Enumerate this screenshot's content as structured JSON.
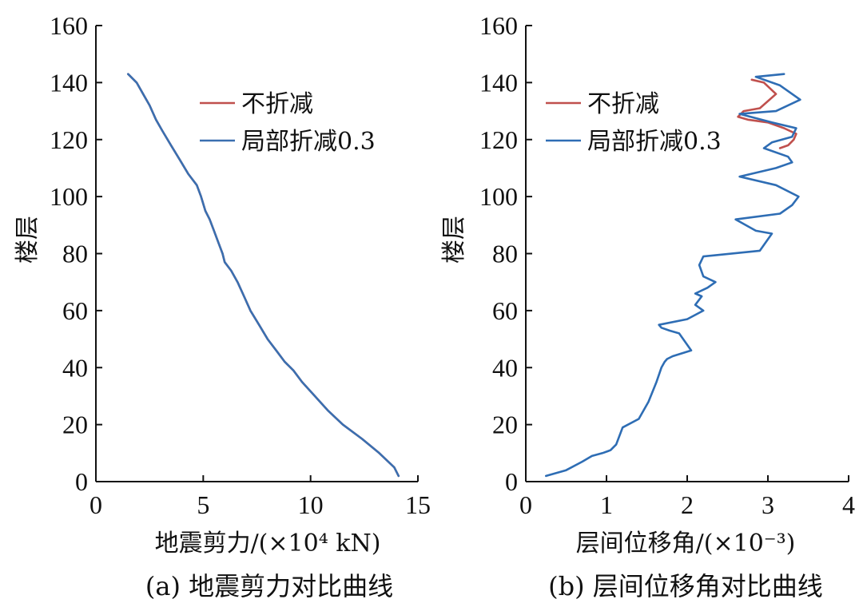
{
  "colors": {
    "series1": "#c0504d",
    "series2": "#3a6fb0",
    "axis": "#111111"
  },
  "chart_data": [
    {
      "type": "line",
      "caption": "(a) 地震剪力对比曲线",
      "xlabel": "地震剪力/(×10⁴ kN)",
      "ylabel": "楼层",
      "xlim": [
        0,
        15
      ],
      "ylim": [
        0,
        160
      ],
      "xticks": [
        "0",
        "5",
        "10",
        "15"
      ],
      "yticks": [
        "0",
        "20",
        "40",
        "60",
        "80",
        "100",
        "120",
        "140",
        "160"
      ],
      "legend": {
        "position": "top-right"
      },
      "series": [
        {
          "name": "不折减",
          "color": "#c0504d",
          "x": [
            14.1,
            13.9,
            13.2,
            12.4,
            11.5,
            10.8,
            10.2,
            9.6,
            9.2,
            8.8,
            8.4,
            8.0,
            7.6,
            7.2,
            6.9,
            6.6,
            6.3,
            6.0,
            5.9,
            5.7,
            5.5,
            5.3,
            5.1,
            4.9,
            4.7,
            4.3,
            3.9,
            3.5,
            3.1,
            2.8,
            2.5,
            2.2,
            1.9,
            1.5
          ],
          "y": [
            2,
            5,
            10,
            15,
            20,
            25,
            30,
            35,
            39,
            42,
            46,
            50,
            55,
            60,
            65,
            70,
            74,
            77,
            80,
            84,
            88,
            92,
            95,
            100,
            104,
            108,
            113,
            118,
            123,
            127,
            132,
            136,
            140,
            143
          ]
        },
        {
          "name": "局部折减0.3",
          "color": "#3a6fb0",
          "x": [
            14.1,
            13.9,
            13.2,
            12.4,
            11.5,
            10.8,
            10.2,
            9.6,
            9.2,
            8.8,
            8.4,
            8.0,
            7.6,
            7.2,
            6.9,
            6.6,
            6.3,
            6.0,
            5.9,
            5.7,
            5.5,
            5.3,
            5.1,
            4.9,
            4.7,
            4.3,
            3.9,
            3.5,
            3.1,
            2.8,
            2.5,
            2.2,
            1.9,
            1.5
          ],
          "y": [
            2,
            5,
            10,
            15,
            20,
            25,
            30,
            35,
            39,
            42,
            46,
            50,
            55,
            60,
            65,
            70,
            74,
            77,
            80,
            84,
            88,
            92,
            95,
            100,
            104,
            108,
            113,
            118,
            123,
            127,
            132,
            136,
            140,
            143
          ]
        }
      ]
    },
    {
      "type": "line",
      "caption": "(b) 层间位移角对比曲线",
      "xlabel": "层间位移角/(×10⁻³)",
      "ylabel": "楼层",
      "xlim": [
        0,
        4
      ],
      "ylim": [
        0,
        160
      ],
      "xticks": [
        "0",
        "1",
        "2",
        "3",
        "4"
      ],
      "yticks": [
        "0",
        "20",
        "40",
        "60",
        "80",
        "100",
        "120",
        "140",
        "160"
      ],
      "legend": {
        "position": "top-left"
      },
      "series": [
        {
          "name": "不折减",
          "color": "#c0504d",
          "x": [
            2.8,
            2.95,
            3.1,
            2.9,
            2.7,
            2.63,
            2.75,
            3.0,
            3.2,
            3.35,
            3.32,
            3.25,
            3.15
          ],
          "y": [
            141,
            140,
            136,
            131,
            130,
            128,
            127,
            126,
            124,
            122,
            120,
            118,
            117
          ]
        },
        {
          "name": "局部折减0.3",
          "color": "#2e6db4",
          "x": [
            0.25,
            0.5,
            0.7,
            0.82,
            0.95,
            1.05,
            1.12,
            1.2,
            1.4,
            1.52,
            1.62,
            1.68,
            1.72,
            1.75,
            1.82,
            2.05,
            1.9,
            1.78,
            1.68,
            1.65,
            2.0,
            2.2,
            2.1,
            2.18,
            2.1,
            2.25,
            2.35,
            2.2,
            2.15,
            2.2,
            2.9,
            3.05,
            2.85,
            2.6,
            3.15,
            3.3,
            3.38,
            3.1,
            2.65,
            3.1,
            3.3,
            3.25,
            2.95,
            3.05,
            3.3,
            3.35,
            3.05,
            2.65,
            3.1,
            3.4,
            3.15,
            2.85,
            3.2
          ],
          "y": [
            2,
            4,
            7,
            9,
            10,
            11,
            13,
            19,
            22,
            28,
            35,
            40,
            42,
            43,
            44,
            46,
            52,
            53,
            54,
            55,
            57,
            60,
            62,
            65,
            66,
            68,
            70,
            72,
            76,
            79,
            81,
            87,
            88,
            92,
            94,
            97,
            100,
            104,
            107,
            110,
            112,
            114,
            117,
            119,
            121,
            124,
            126,
            129,
            130,
            134,
            139,
            142,
            143
          ]
        }
      ]
    }
  ]
}
